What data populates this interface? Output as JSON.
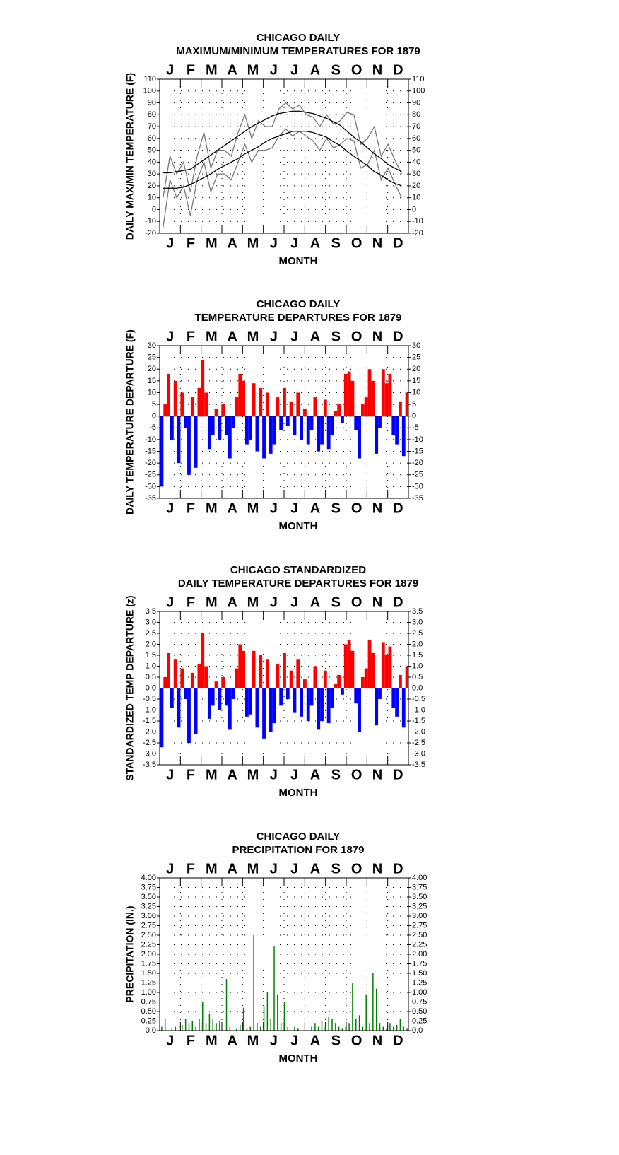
{
  "chart_data": [
    {
      "type": "line",
      "title": "CHICAGO DAILY",
      "subtitle": "MAXIMUM/MINIMUM TEMPERATURES FOR 1879",
      "y_label": "DAILY MAX/MIN TEMPERATURE (F)",
      "x_label": "MONTH",
      "categories": [
        "J",
        "F",
        "M",
        "A",
        "M",
        "J",
        "J",
        "A",
        "S",
        "O",
        "N",
        "D"
      ],
      "xlim": [
        0,
        365
      ],
      "ylim": [
        -20,
        110
      ],
      "yticks": [
        -20,
        -10,
        0,
        10,
        20,
        30,
        40,
        50,
        60,
        70,
        80,
        90,
        100,
        110
      ],
      "grid": true,
      "x": [
        5,
        15,
        25,
        35,
        45,
        55,
        65,
        75,
        85,
        95,
        105,
        115,
        125,
        135,
        145,
        155,
        165,
        175,
        185,
        195,
        205,
        215,
        225,
        235,
        245,
        255,
        265,
        275,
        285,
        295,
        305,
        315,
        325,
        335,
        345,
        355
      ],
      "series": [
        {
          "color": "#777777",
          "values": [
            10,
            45,
            30,
            40,
            15,
            45,
            65,
            35,
            50,
            50,
            45,
            65,
            80,
            60,
            75,
            70,
            70,
            85,
            90,
            85,
            88,
            80,
            78,
            70,
            80,
            72,
            75,
            82,
            80,
            55,
            60,
            70,
            45,
            55,
            42,
            30
          ]
        },
        {
          "color": "#777777",
          "values": [
            -15,
            25,
            10,
            20,
            -5,
            25,
            40,
            15,
            30,
            30,
            25,
            40,
            55,
            40,
            50,
            50,
            52,
            62,
            68,
            62,
            66,
            62,
            58,
            50,
            60,
            52,
            55,
            60,
            58,
            35,
            38,
            50,
            25,
            35,
            22,
            10
          ]
        },
        {
          "color": "#000000",
          "values": [
            31,
            31,
            32,
            33,
            34,
            38,
            42,
            46,
            50,
            54,
            58,
            62,
            66,
            70,
            73,
            76,
            79,
            81,
            82,
            83,
            83,
            82,
            81,
            79,
            77,
            74,
            71,
            66,
            61,
            57,
            52,
            47,
            43,
            38,
            35,
            32
          ]
        },
        {
          "color": "#000000",
          "values": [
            18,
            18,
            18,
            19,
            21,
            24,
            27,
            30,
            34,
            37,
            40,
            43,
            47,
            50,
            53,
            57,
            60,
            62,
            64,
            66,
            66,
            66,
            65,
            63,
            61,
            57,
            54,
            49,
            45,
            41,
            37,
            32,
            29,
            25,
            22,
            20
          ]
        }
      ]
    },
    {
      "type": "bar",
      "title": "CHICAGO DAILY",
      "subtitle": "TEMPERATURE DEPARTURES FOR 1879",
      "y_label": "DAILY TEMPERATURE DEPARTURE (F)",
      "x_label": "MONTH",
      "categories": [
        "J",
        "F",
        "M",
        "A",
        "M",
        "J",
        "J",
        "A",
        "S",
        "O",
        "N",
        "D"
      ],
      "xlim": [
        0,
        365
      ],
      "ylim": [
        -35,
        30
      ],
      "yticks": [
        -35,
        -30,
        -25,
        -20,
        -15,
        -10,
        -5,
        0,
        5,
        10,
        15,
        20,
        25,
        30
      ],
      "grid": true,
      "positive_color": "#ff0000",
      "negative_color": "#0000ff",
      "x": [
        3,
        8,
        13,
        18,
        23,
        28,
        33,
        38,
        43,
        48,
        53,
        58,
        63,
        68,
        73,
        78,
        83,
        88,
        93,
        98,
        103,
        108,
        113,
        118,
        123,
        128,
        133,
        138,
        143,
        148,
        153,
        158,
        163,
        168,
        173,
        178,
        183,
        188,
        193,
        198,
        203,
        208,
        213,
        218,
        223,
        228,
        233,
        238,
        243,
        248,
        253,
        258,
        263,
        268,
        273,
        278,
        283,
        288,
        293,
        298,
        303,
        308,
        313,
        318,
        323,
        328,
        333,
        338,
        343,
        348,
        353,
        358,
        363
      ],
      "values": [
        -30,
        5,
        18,
        -10,
        15,
        -20,
        10,
        -5,
        -25,
        8,
        -22,
        12,
        24,
        10,
        -14,
        -8,
        3,
        -10,
        5,
        -8,
        -18,
        -5,
        8,
        18,
        15,
        -12,
        -10,
        14,
        -15,
        12,
        -18,
        10,
        -16,
        -12,
        8,
        -6,
        12,
        -4,
        6,
        -8,
        10,
        -10,
        3,
        -12,
        -6,
        8,
        -15,
        -12,
        7,
        -14,
        -8,
        2,
        5,
        -3,
        18,
        19,
        15,
        -6,
        -18,
        5,
        8,
        20,
        15,
        -16,
        -5,
        20,
        14,
        18,
        -8,
        -12,
        6,
        -17,
        10
      ]
    },
    {
      "type": "bar",
      "title": "CHICAGO STANDARDIZED",
      "subtitle": "DAILY TEMPERATURE DEPARTURES FOR 1879",
      "y_label": "STANDARDIZED TEMP DEPARTURE (z)",
      "x_label": "MONTH",
      "categories": [
        "J",
        "F",
        "M",
        "A",
        "M",
        "J",
        "J",
        "A",
        "S",
        "O",
        "N",
        "D"
      ],
      "xlim": [
        0,
        365
      ],
      "ylim": [
        -3.5,
        3.5
      ],
      "yticks": [
        -3.5,
        {
          "value": -3,
          "label": "-3.0"
        },
        -2.5,
        {
          "value": -2,
          "label": "-2.0"
        },
        -1.5,
        {
          "value": -1,
          "label": "-1.0"
        },
        -0.5,
        {
          "value": 0,
          "label": "0.0"
        },
        0.5,
        {
          "value": 1,
          "label": "1.0"
        },
        1.5,
        {
          "value": 2,
          "label": "2.0"
        },
        2.5,
        {
          "value": 3,
          "label": "3.0"
        },
        3.5
      ],
      "grid": true,
      "positive_color": "#ff0000",
      "negative_color": "#0000ff",
      "x": [
        3,
        8,
        13,
        18,
        23,
        28,
        33,
        38,
        43,
        48,
        53,
        58,
        63,
        68,
        73,
        78,
        83,
        88,
        93,
        98,
        103,
        108,
        113,
        118,
        123,
        128,
        133,
        138,
        143,
        148,
        153,
        158,
        163,
        168,
        173,
        178,
        183,
        188,
        193,
        198,
        203,
        208,
        213,
        218,
        223,
        228,
        233,
        238,
        243,
        248,
        253,
        258,
        263,
        268,
        273,
        278,
        283,
        288,
        293,
        298,
        303,
        308,
        313,
        318,
        323,
        328,
        333,
        338,
        343,
        348,
        353,
        358,
        363
      ],
      "values": [
        -2.7,
        0.5,
        1.6,
        -0.9,
        1.3,
        -1.8,
        0.9,
        -0.5,
        -2.5,
        0.7,
        -2.1,
        1.1,
        2.5,
        1.0,
        -1.4,
        -0.8,
        0.3,
        -1.0,
        0.5,
        -0.8,
        -1.9,
        -0.5,
        0.9,
        2.0,
        1.7,
        -1.3,
        -1.2,
        1.7,
        -1.8,
        1.5,
        -2.3,
        1.3,
        -2.0,
        -1.6,
        1.1,
        -0.8,
        1.6,
        -0.5,
        0.8,
        -1.1,
        1.3,
        -1.3,
        0.4,
        -1.5,
        -0.8,
        1.0,
        -1.9,
        -1.5,
        0.8,
        -1.6,
        -0.9,
        0.2,
        0.6,
        -0.3,
        2.0,
        2.2,
        1.7,
        -0.7,
        -2.0,
        0.5,
        0.9,
        2.2,
        1.6,
        -1.7,
        -0.5,
        2.1,
        1.5,
        1.9,
        -0.9,
        -1.3,
        0.6,
        -1.8,
        1.0
      ]
    },
    {
      "type": "bar",
      "title": "CHICAGO DAILY",
      "subtitle": "PRECIPITATION FOR 1879",
      "y_label": "PRECIPITATION (IN.)",
      "x_label": "MONTH",
      "categories": [
        "J",
        "F",
        "M",
        "A",
        "M",
        "J",
        "J",
        "A",
        "S",
        "O",
        "N",
        "D"
      ],
      "xlim": [
        0,
        365
      ],
      "ylim": [
        0,
        4
      ],
      "yticks": [
        {
          "value": 0,
          "label": "0.0"
        },
        0.25,
        {
          "value": 0.5,
          "label": "0.50"
        },
        0.75,
        {
          "value": 1,
          "label": "1.00"
        },
        1.25,
        {
          "value": 1.5,
          "label": "1.50"
        },
        1.75,
        {
          "value": 2,
          "label": "2.00"
        },
        2.25,
        {
          "value": 2.5,
          "label": "2.50"
        },
        2.75,
        {
          "value": 3,
          "label": "3.00"
        },
        3.25,
        {
          "value": 3.5,
          "label": "3.50"
        },
        3.75,
        {
          "value": 4,
          "label": "4.00"
        }
      ],
      "grid": true,
      "color": "#008000",
      "x": [
        3,
        8,
        13,
        18,
        23,
        28,
        33,
        38,
        43,
        48,
        53,
        58,
        63,
        68,
        73,
        78,
        83,
        88,
        93,
        98,
        103,
        108,
        113,
        118,
        123,
        128,
        133,
        138,
        143,
        148,
        153,
        158,
        163,
        168,
        173,
        178,
        183,
        188,
        193,
        198,
        203,
        208,
        213,
        218,
        223,
        228,
        233,
        238,
        243,
        248,
        253,
        258,
        263,
        268,
        273,
        278,
        283,
        288,
        293,
        298,
        303,
        308,
        313,
        318,
        323,
        328,
        333,
        338,
        343,
        348,
        353,
        358,
        363
      ],
      "values": [
        0.1,
        0.3,
        0,
        0.05,
        0.1,
        0,
        0.15,
        0.3,
        0.2,
        0.25,
        0.1,
        0.3,
        0.75,
        0.2,
        0.45,
        0.3,
        0.2,
        0.25,
        0,
        1.35,
        0.1,
        0,
        0.05,
        0.15,
        0.6,
        0.05,
        0.1,
        2.5,
        0.2,
        0.1,
        0.65,
        1,
        0.3,
        2.2,
        0.95,
        0.2,
        0.75,
        0.1,
        0,
        0.1,
        0.05,
        0,
        0,
        0,
        0.1,
        0.2,
        0.1,
        0.25,
        0.1,
        0.35,
        0.3,
        0.2,
        0.1,
        0.05,
        0.1,
        0.2,
        1.25,
        0.3,
        0.4,
        0.1,
        0.95,
        0.2,
        1.5,
        1.1,
        0.2,
        0.1,
        0.05,
        0.2,
        0.1,
        0.15,
        0.3,
        0.1,
        0.05
      ]
    }
  ]
}
